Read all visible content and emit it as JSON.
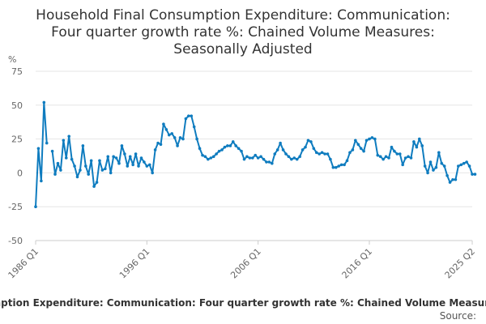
{
  "chart_data": {
    "type": "line",
    "title_lines": [
      "Household Final Consumption Expenditure: Communication:",
      "Four quarter growth rate %: Chained Volume Measures:",
      "Seasonally Adjusted"
    ],
    "ylabel": "%",
    "ylim": [
      -50,
      75
    ],
    "yticks": [
      75,
      50,
      25,
      0,
      -25,
      -50
    ],
    "xlim": [
      0,
      157
    ],
    "xticks": [
      {
        "i": 0,
        "label": "1986 Q1"
      },
      {
        "i": 40,
        "label": "1996 Q1"
      },
      {
        "i": 80,
        "label": "2006 Q1"
      },
      {
        "i": 120,
        "label": "2016 Q1"
      },
      {
        "i": 157,
        "label": "2025 Q2"
      }
    ],
    "line_color": "#0f7cbf",
    "series": [
      {
        "name": "Household Final Consumption Expenditure: Communication: Four quarter growth rate %: Chained Volume Measures: Seasonally Adjusted",
        "values": [
          -25,
          18,
          -6,
          52,
          22,
          null,
          16,
          -1,
          7,
          2,
          24,
          11,
          27,
          10,
          5,
          -3,
          2,
          20,
          5,
          -1,
          9,
          -10,
          -7,
          9,
          2,
          3,
          12,
          0,
          12,
          11,
          7,
          20,
          14,
          5,
          12,
          6,
          14,
          5,
          11,
          8,
          5,
          6,
          0,
          17,
          22,
          21,
          36,
          32,
          28,
          29,
          26,
          20,
          26,
          25,
          40,
          42,
          42,
          34,
          25,
          18,
          13,
          12,
          10,
          11,
          12,
          14,
          16,
          17,
          19,
          20,
          20,
          23,
          20,
          18,
          16,
          10,
          12,
          11,
          11,
          13,
          11,
          12,
          10,
          8,
          8,
          7,
          14,
          17,
          22,
          17,
          14,
          12,
          10,
          11,
          10,
          12,
          17,
          19,
          24,
          23,
          18,
          15,
          14,
          15,
          14,
          14,
          10,
          4,
          4,
          5,
          6,
          6,
          9,
          15,
          17,
          24,
          21,
          18,
          16,
          24,
          25,
          26,
          25,
          13,
          12,
          10,
          12,
          11,
          19,
          16,
          14,
          14,
          6,
          11,
          12,
          11,
          23,
          19,
          25,
          20,
          5,
          0,
          8,
          2,
          4,
          15,
          7,
          5,
          -2,
          -7,
          -5,
          -5,
          5,
          6,
          7,
          8,
          5,
          -1,
          -1
        ]
      }
    ],
    "footer_title": "Household Final Consumption Expenditure: Communication: Four quarter growth rate %: Chained Volume Measures: Seasonally Adjusted",
    "source_label": "Source:"
  }
}
